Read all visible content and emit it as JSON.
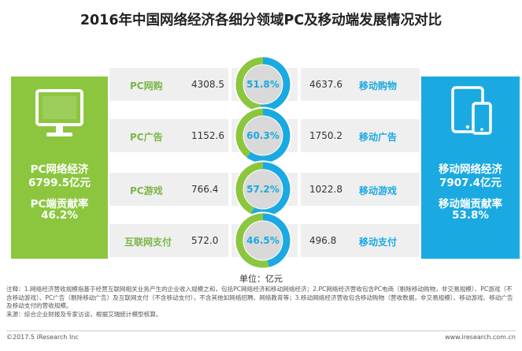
{
  "title": "2016年中国网络经济各细分领域PC及移动端发展情况对比",
  "pc": {
    "label": "PC网络经济",
    "total": "6799.5亿元",
    "rate_label": "PC端贡献率",
    "rate": "46.2%",
    "color": "#8cc63f",
    "icon": "monitor-icon"
  },
  "mobile": {
    "label": "移动网络经济",
    "total": "7907.4亿元",
    "rate_label": "移动端贡献率",
    "rate": "53.8%",
    "color": "#1ba9e1",
    "icon": "tablet-phone-icon"
  },
  "rows": [
    {
      "pc_cat": "PC网购",
      "pc_val": "4308.5",
      "pct": "51.8%",
      "mob_val": "4637.6",
      "mob_cat": "移动购物"
    },
    {
      "pc_cat": "PC广告",
      "pc_val": "1152.6",
      "pct": "60.3%",
      "mob_val": "1750.2",
      "mob_cat": "移动广告"
    },
    {
      "pc_cat": "PC游戏",
      "pc_val": "766.4",
      "pct": "57.2%",
      "mob_val": "1022.8",
      "mob_cat": "移动游戏"
    },
    {
      "pc_cat": "互联网支付",
      "pc_val": "572.0",
      "pct": "46.5%",
      "mob_val": "496.8",
      "mob_cat": "移动支付"
    }
  ],
  "unit": "单位：亿元",
  "notes": "注释：1.网络经济营收规模指基于经营互联网相关业务产生的企业收入规模之和，包括PC网络经济和移动网络经济；2.PC网络经济营收包含PC电商（剔除移动购物，非交易规模）、PC游戏（不含移动游戏）、PC广告（剔除移动广告）及互联网支付（不含移动支付），不含其他如网络招聘、网络教育等；3.移动网络经济营收包含移动购物（营收数据，非交易规模）、移动游戏、移动广告及移动支付的营收规模。",
  "source": "来源：综合企业财报及专家访谈，根据艾瑞统计模型核算。",
  "copyright": "©2017.5 iResearch Inc",
  "website": "www.iresearch.com.cn",
  "chart_data": {
    "type": "pie",
    "title": "2016年中国网络经济各细分领域PC及移动端发展情况对比",
    "unit": "亿元",
    "categories": [
      "网购/移动购物",
      "广告/移动广告",
      "游戏/移动游戏",
      "互联网支付/移动支付"
    ],
    "series": [
      {
        "name": "PC",
        "values": [
          4308.5,
          1152.6,
          766.4,
          572.0
        ]
      },
      {
        "name": "移动",
        "values": [
          4637.6,
          1750.2,
          1022.8,
          496.8
        ]
      }
    ],
    "mobile_share_pct": [
      51.8,
      60.3,
      57.2,
      46.5
    ],
    "totals": {
      "PC": 6799.5,
      "移动": 7907.4
    },
    "share": {
      "PC": 46.2,
      "移动": 53.8
    }
  }
}
